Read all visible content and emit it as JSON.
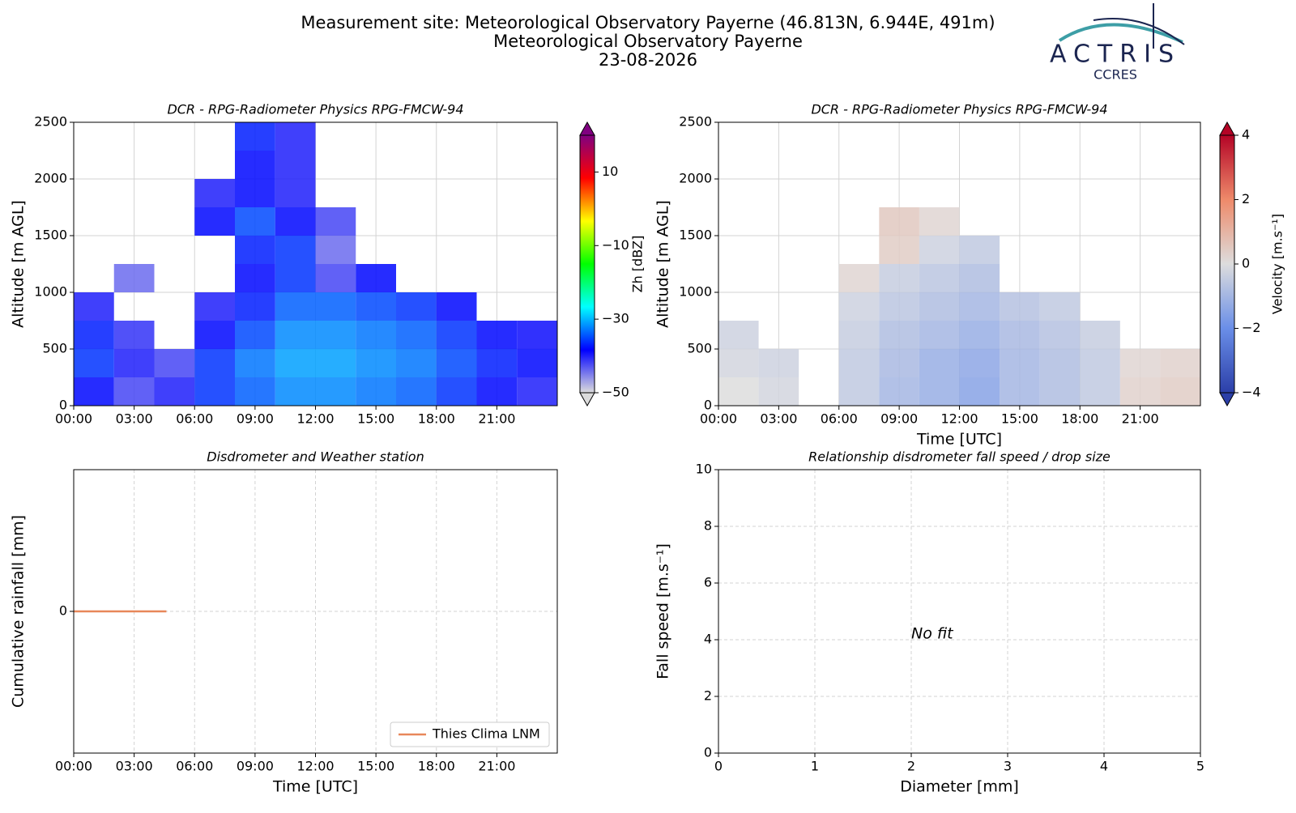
{
  "header": {
    "lines": [
      "Measurement site: Meteorological Observatory Payerne (46.813N, 6.944E, 491m)",
      "Meteorological Observatory Payerne",
      "23-08-2026"
    ],
    "logo_name": "ACTRIS",
    "logo_sub": "CCRES"
  },
  "chart_data": [
    {
      "type": "heatmap",
      "title": "DCR - RPG-Radiometer Physics RPG-FMCW-94",
      "y_label": "Altitude [m AGL]",
      "xlim": [
        0,
        24
      ],
      "xticks": [
        {
          "value": 0,
          "label": "00:00"
        },
        {
          "value": 3,
          "label": "03:00"
        },
        {
          "value": 6,
          "label": "06:00"
        },
        {
          "value": 9,
          "label": "09:00"
        },
        {
          "value": 12,
          "label": "12:00"
        },
        {
          "value": 15,
          "label": "15:00"
        },
        {
          "value": 18,
          "label": "18:00"
        },
        {
          "value": 21,
          "label": "21:00"
        }
      ],
      "ylim": [
        0,
        2500
      ],
      "yticks": [
        0,
        500,
        1000,
        1500,
        2000,
        2500
      ],
      "grid": true,
      "x_edges": [
        0,
        2,
        4,
        6,
        8,
        10,
        12,
        14,
        16,
        18,
        20,
        22,
        24
      ],
      "y_edges": [
        0,
        250,
        500,
        750,
        1000,
        1250,
        1500,
        1750,
        2000,
        2250,
        2500
      ],
      "z": [
        [
          -38,
          -42,
          -40,
          -36,
          -34,
          -32,
          -32,
          -33,
          -34,
          -36,
          -38,
          -40
        ],
        [
          -36,
          -40,
          -42,
          -36,
          -33,
          -31,
          -31,
          -32,
          -33,
          -35,
          -37,
          -38
        ],
        [
          -37,
          -41,
          null,
          -38,
          -35,
          -32,
          -32,
          -33,
          -34,
          -36,
          -38,
          -39
        ],
        [
          -40,
          null,
          null,
          -40,
          -37,
          -34,
          -34,
          -35,
          -36,
          -38,
          null,
          null
        ],
        [
          null,
          -44,
          null,
          null,
          -38,
          -36,
          -42,
          -38,
          null,
          null,
          null,
          null
        ],
        [
          null,
          null,
          null,
          null,
          -37,
          -36,
          -44,
          null,
          null,
          null,
          null,
          null
        ],
        [
          null,
          null,
          null,
          -38,
          -35,
          -38,
          -42,
          null,
          null,
          null,
          null,
          null
        ],
        [
          null,
          null,
          null,
          -40,
          -38,
          -40,
          null,
          null,
          null,
          null,
          null,
          null
        ],
        [
          null,
          null,
          null,
          null,
          -38,
          -40,
          null,
          null,
          null,
          null,
          null,
          null
        ],
        [
          null,
          null,
          null,
          null,
          -37,
          -40,
          null,
          null,
          null,
          null,
          null,
          null
        ]
      ],
      "colorbar": {
        "label": "Zh [dBZ]",
        "lim": [
          -50,
          20
        ],
        "ticks": [
          {
            "value": -50,
            "label": "−50"
          },
          {
            "value": -30,
            "label": "−30"
          },
          {
            "value": -10,
            "label": "−10"
          },
          10
        ],
        "colormap": [
          "#dcdcdc",
          "#0000ff",
          "#00ffff",
          "#00ff00",
          "#ffff00",
          "#ff0000",
          "#800080"
        ]
      }
    },
    {
      "type": "heatmap",
      "title": "DCR - RPG-Radiometer Physics RPG-FMCW-94",
      "y_label": "Altitude [m AGL]",
      "x_label": "Time [UTC]",
      "xlim": [
        0,
        24
      ],
      "xticks": [
        {
          "value": 0,
          "label": "00:00"
        },
        {
          "value": 3,
          "label": "03:00"
        },
        {
          "value": 6,
          "label": "06:00"
        },
        {
          "value": 9,
          "label": "09:00"
        },
        {
          "value": 12,
          "label": "12:00"
        },
        {
          "value": 15,
          "label": "15:00"
        },
        {
          "value": 18,
          "label": "18:00"
        },
        {
          "value": 21,
          "label": "21:00"
        }
      ],
      "ylim": [
        0,
        2500
      ],
      "yticks": [
        0,
        500,
        1000,
        1500,
        2000,
        2500
      ],
      "grid": true,
      "x_edges": [
        0,
        2,
        4,
        6,
        8,
        10,
        12,
        14,
        16,
        18,
        20,
        22,
        24
      ],
      "y_edges": [
        0,
        250,
        500,
        750,
        1000,
        1250,
        1500,
        1750,
        2000,
        2250,
        2500
      ],
      "z": [
        [
          0,
          -0.2,
          null,
          -0.5,
          -1,
          -1.2,
          -1.5,
          -1,
          -0.8,
          -0.5,
          0.3,
          0.4
        ],
        [
          -0.2,
          -0.3,
          null,
          -0.5,
          -0.9,
          -1.2,
          -1.4,
          -1,
          -0.8,
          -0.5,
          0.2,
          0.3
        ],
        [
          -0.3,
          null,
          null,
          -0.4,
          -0.8,
          -1,
          -1.2,
          -0.9,
          -0.7,
          -0.4,
          null,
          null
        ],
        [
          null,
          null,
          null,
          -0.3,
          -0.6,
          -0.8,
          -1,
          -0.7,
          -0.5,
          null,
          null,
          null
        ],
        [
          null,
          null,
          null,
          0.2,
          -0.4,
          -0.6,
          -0.8,
          null,
          null,
          null,
          null,
          null
        ],
        [
          null,
          null,
          null,
          null,
          0.4,
          -0.3,
          -0.5,
          null,
          null,
          null,
          null,
          null
        ],
        [
          null,
          null,
          null,
          null,
          0.5,
          0.2,
          null,
          null,
          null,
          null,
          null,
          null
        ],
        [
          null,
          null,
          null,
          null,
          null,
          null,
          null,
          null,
          null,
          null,
          null,
          null
        ],
        [
          null,
          null,
          null,
          null,
          null,
          null,
          null,
          null,
          null,
          null,
          null,
          null
        ],
        [
          null,
          null,
          null,
          null,
          null,
          null,
          null,
          null,
          null,
          null,
          null,
          null
        ]
      ],
      "colorbar": {
        "label": "Velocity [m.s⁻¹]",
        "lim": [
          -4,
          4
        ],
        "ticks": [
          {
            "value": -4,
            "label": "−4"
          },
          {
            "value": -2,
            "label": "−2"
          },
          0,
          2,
          4
        ],
        "colormap": [
          "#2b3fa8",
          "#6a8ee8",
          "#dddddd",
          "#ee8a6a",
          "#b40426"
        ]
      }
    },
    {
      "type": "line",
      "title": "Disdrometer and Weather station",
      "y_label": "Cumulative rainfall [mm]",
      "x_label": "Time [UTC]",
      "xlim": [
        0,
        24
      ],
      "xticks": [
        {
          "value": 0,
          "label": "00:00"
        },
        {
          "value": 3,
          "label": "03:00"
        },
        {
          "value": 6,
          "label": "06:00"
        },
        {
          "value": 9,
          "label": "09:00"
        },
        {
          "value": 12,
          "label": "12:00"
        },
        {
          "value": 15,
          "label": "15:00"
        },
        {
          "value": 18,
          "label": "18:00"
        },
        {
          "value": 21,
          "label": "21:00"
        }
      ],
      "ylim": [
        -1,
        1
      ],
      "yticks": [
        0
      ],
      "grid": true,
      "legend": "lower right",
      "x": [
        0,
        4.6
      ],
      "series": [
        {
          "name": "Thies Clima LNM",
          "color": "#e8875a",
          "values": [
            0,
            0
          ]
        }
      ]
    },
    {
      "type": "scatter",
      "title": "Relationship disdrometer fall speed / drop size",
      "y_label": "Fall speed [m.s⁻¹]",
      "x_label": "Diameter [mm]",
      "xlim": [
        0,
        5
      ],
      "xticks": [
        0,
        1,
        2,
        3,
        4,
        5
      ],
      "ylim": [
        0,
        10
      ],
      "yticks": [
        0,
        2,
        4,
        6,
        8,
        10
      ],
      "grid": true,
      "annotation": "No fit"
    }
  ]
}
